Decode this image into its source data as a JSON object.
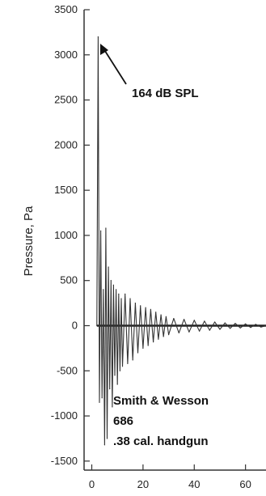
{
  "chart_data": {
    "type": "line",
    "title": "",
    "xlabel": "",
    "ylabel": "Pressure, Pa",
    "xlim": [
      -3,
      68
    ],
    "ylim": [
      -1600,
      3500
    ],
    "x_ticks": [
      0,
      20,
      40,
      60
    ],
    "x_tick_labels": [
      "0",
      "20",
      "40",
      "60"
    ],
    "y_ticks": [
      3500,
      3000,
      2500,
      2000,
      1500,
      1000,
      500,
      0,
      -500,
      -1000,
      -1500
    ],
    "y_tick_labels": [
      "3500",
      "3000",
      "2500",
      "2000",
      "1500",
      "1000",
      "500",
      "0",
      "-500",
      "-1000",
      "-1500"
    ],
    "grid": false,
    "series": [
      {
        "color": "#333333",
        "x": [
          2.0,
          2.5,
          3.0,
          3.5,
          4.0,
          4.5,
          5.0,
          5.5,
          6.0,
          6.5,
          7.0,
          7.5,
          8.0,
          8.5,
          9.0,
          9.5,
          10.0,
          10.5,
          11.0,
          11.5,
          12.0,
          13.0,
          14.0,
          15.0,
          16.0,
          17.0,
          18.0,
          19.0,
          20.0,
          21.0,
          22.0,
          23.0,
          24.0,
          25.0,
          26.0,
          27.0,
          28.0,
          29.0,
          30.0,
          32.0,
          34.0,
          36.0,
          38.0,
          40.0,
          42.0,
          44.0,
          46.0,
          48.0,
          50.0,
          52.0,
          54.0,
          56.0,
          58.0,
          60.0,
          62.0,
          64.0,
          66.0,
          68.0
        ],
        "y": [
          0,
          3200,
          -850,
          1050,
          -800,
          400,
          -1320,
          1080,
          -1250,
          650,
          -700,
          500,
          -900,
          450,
          -550,
          400,
          -650,
          350,
          -500,
          300,
          -450,
          350,
          -420,
          300,
          -380,
          250,
          -300,
          220,
          -250,
          200,
          -220,
          180,
          -180,
          150,
          -150,
          120,
          -120,
          100,
          -100,
          80,
          -80,
          70,
          -70,
          60,
          -60,
          50,
          -50,
          40,
          -40,
          30,
          -30,
          25,
          -25,
          20,
          -20,
          15,
          -15,
          0
        ]
      }
    ],
    "annotations": [
      {
        "text": "164 dB SPL",
        "points_to": {
          "x": 3,
          "y": 3200
        }
      },
      {
        "text": "Smith & Wesson"
      },
      {
        "text": "686"
      },
      {
        "text": ".38 cal. handgun"
      }
    ]
  }
}
